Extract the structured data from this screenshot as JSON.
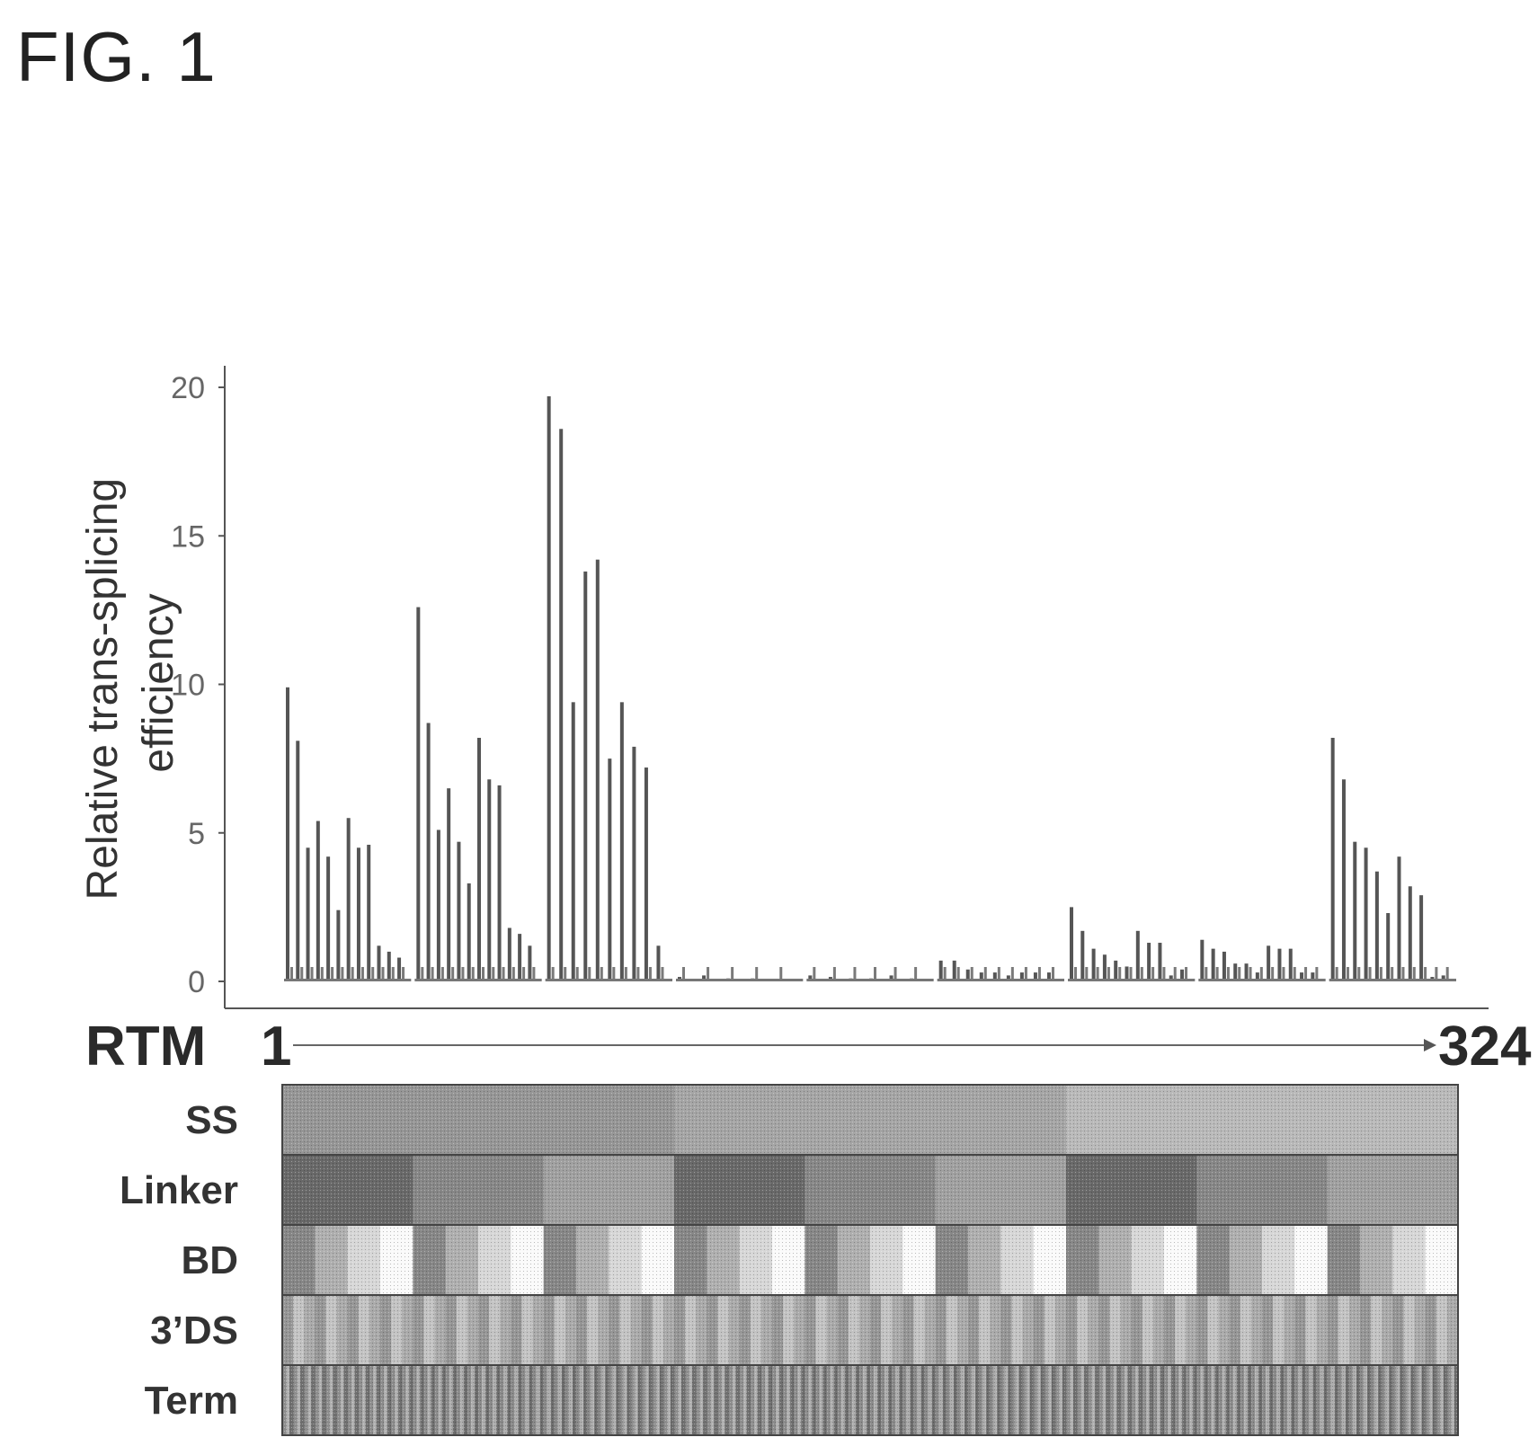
{
  "figure_label": "FIG. 1",
  "chart_data": {
    "type": "bar",
    "title": "",
    "ylabel": [
      "Relative trans-splicing",
      "efficiency"
    ],
    "ylim": [
      0,
      20
    ],
    "yticks": [
      0,
      5,
      10,
      15,
      20
    ],
    "x_axis": {
      "label": "RTM",
      "start_label": "1",
      "end_label": "324",
      "n": 324
    },
    "grid": false,
    "legend": "none",
    "bar_color": "#555555",
    "small_bar_color": "#7a7a7a",
    "series": [
      {
        "values": [
          9.9,
          8.1,
          4.5,
          5.4,
          4.2,
          2.4,
          5.5,
          4.5,
          4.6,
          1.2,
          1.0,
          0.8
        ]
      },
      {
        "values": [
          12.6,
          8.7,
          5.1,
          6.5,
          4.7,
          3.3,
          8.2,
          6.8,
          6.6,
          1.8,
          1.6,
          1.2
        ]
      },
      {
        "values": [
          19.7,
          18.6,
          9.4,
          13.8,
          14.2,
          7.5,
          9.4,
          7.9,
          7.2,
          1.2
        ]
      },
      {
        "values": [
          0.15,
          0.2,
          0.1,
          0.1,
          0.05
        ]
      },
      {
        "values": [
          0.2,
          0.15,
          0.1,
          0.1,
          0.2,
          0.1
        ]
      },
      {
        "values": [
          0.7,
          0.7,
          0.4,
          0.3,
          0.3,
          0.2,
          0.3,
          0.3,
          0.3
        ]
      },
      {
        "values": [
          2.5,
          1.7,
          1.1,
          0.9,
          0.7,
          0.5,
          1.7,
          1.3,
          1.3,
          0.2,
          0.4
        ]
      },
      {
        "values": [
          1.4,
          1.1,
          1.0,
          0.6,
          0.6,
          0.3,
          1.2,
          1.1,
          1.1,
          0.3,
          0.3
        ]
      },
      {
        "values": [
          8.2,
          6.8,
          4.7,
          4.5,
          3.7,
          2.3,
          4.2,
          3.2,
          2.9,
          0.15,
          0.2
        ]
      }
    ],
    "annotation_rows": [
      "SS",
      "Linker",
      "BD",
      "3’DS",
      "Term"
    ]
  }
}
